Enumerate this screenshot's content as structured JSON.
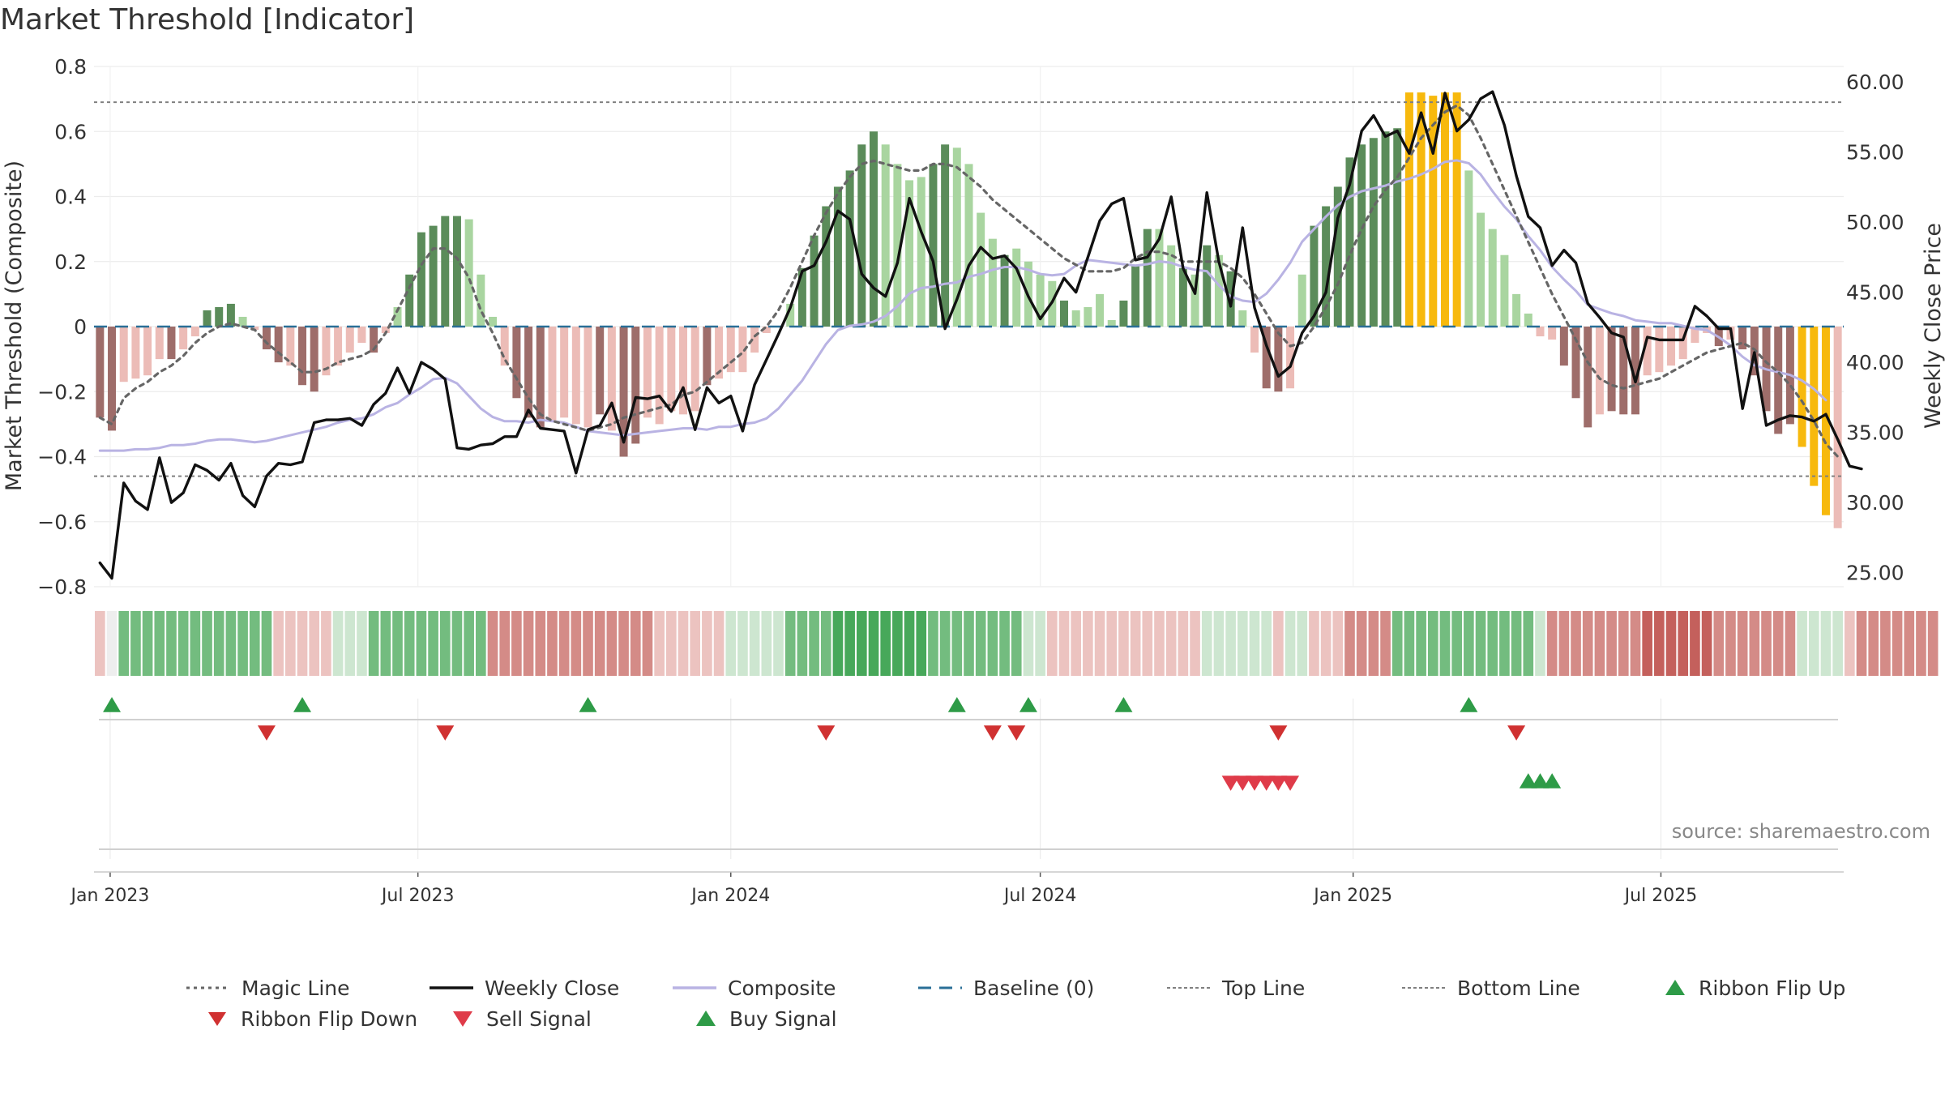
{
  "title": "Market Threshold [Indicator]",
  "source": "source: sharemaestro.com",
  "colors": {
    "magic": "#666666",
    "close": "#111111",
    "composite": "#b9b3e3",
    "baseline": "#2a6f97",
    "topbottom": "#808080",
    "up_strong": "#5b8c5a",
    "up_weak": "#a9d5a0",
    "down_strong": "#9e6d6a",
    "down_weak": "#ecbcb7",
    "extreme": "#f7b90d",
    "buy": "#2e9b47",
    "sell": "#d64545"
  },
  "chart_data": [
    {
      "type": "bar+line",
      "ylabel": "Market Threshold (Composite)",
      "y2label": "Weekly Close Price",
      "ylim": [
        -0.8,
        0.8
      ],
      "y2lim": [
        24,
        61.1
      ],
      "yticks": [
        "0.8",
        "0.6",
        "0.4",
        "0.2",
        "0",
        "−0.2",
        "−0.4",
        "−0.6",
        "−0.8"
      ],
      "yticks_values": [
        0.8,
        0.6,
        0.4,
        0.2,
        0,
        -0.2,
        -0.4,
        -0.6,
        -0.8
      ],
      "y2ticks": [
        "60.00",
        "55.00",
        "50.00",
        "45.00",
        "40.00",
        "35.00",
        "30.00",
        "25.00"
      ],
      "y2ticks_values": [
        60,
        55,
        50,
        45,
        40,
        35,
        30,
        25
      ],
      "top_line": 0.69,
      "bottom_line": -0.46,
      "baseline": 0,
      "grid": true,
      "x_start": "2022-12-26",
      "x_labels": [
        "Jan 2023",
        "Jul 2023",
        "Jan 2024",
        "Jul 2024",
        "Jan 2025",
        "Jul 2025"
      ],
      "x_label_dates": [
        "2023-01-01",
        "2023-07-01",
        "2024-01-01",
        "2024-07-01",
        "2025-01-01",
        "2025-07-01"
      ],
      "composite": [
        -0.28,
        -0.32,
        -0.17,
        -0.16,
        -0.15,
        -0.1,
        -0.1,
        -0.07,
        -0.03,
        0.05,
        0.06,
        0.07,
        0.03,
        -0.01,
        -0.07,
        -0.11,
        -0.12,
        -0.18,
        -0.2,
        -0.15,
        -0.12,
        -0.08,
        -0.05,
        -0.08,
        -0.02,
        0.06,
        0.16,
        0.29,
        0.31,
        0.34,
        0.34,
        0.33,
        0.16,
        0.03,
        -0.12,
        -0.22,
        -0.28,
        -0.31,
        -0.29,
        -0.28,
        -0.3,
        -0.31,
        -0.27,
        -0.32,
        -0.4,
        -0.36,
        -0.28,
        -0.3,
        -0.26,
        -0.27,
        -0.26,
        -0.18,
        -0.16,
        -0.14,
        -0.14,
        -0.08,
        -0.02,
        0.0,
        0.07,
        0.18,
        0.28,
        0.37,
        0.43,
        0.48,
        0.56,
        0.6,
        0.56,
        0.5,
        0.45,
        0.46,
        0.5,
        0.56,
        0.55,
        0.5,
        0.35,
        0.27,
        0.22,
        0.24,
        0.2,
        0.16,
        0.14,
        0.08,
        0.05,
        0.06,
        0.1,
        0.02,
        0.08,
        0.19,
        0.3,
        0.3,
        0.25,
        0.18,
        0.16,
        0.25,
        0.22,
        0.17,
        0.05,
        -0.08,
        -0.19,
        -0.2,
        -0.19,
        0.16,
        0.31,
        0.37,
        0.43,
        0.52,
        0.56,
        0.58,
        0.6,
        0.61,
        0.72,
        0.72,
        0.71,
        0.72,
        0.72,
        0.48,
        0.35,
        0.3,
        0.22,
        0.1,
        0.04,
        -0.03,
        -0.04,
        -0.12,
        -0.22,
        -0.31,
        -0.27,
        -0.26,
        -0.27,
        -0.27,
        -0.15,
        -0.14,
        -0.12,
        -0.1,
        -0.05,
        -0.02,
        -0.06,
        -0.04,
        -0.07,
        -0.15,
        -0.26,
        -0.33,
        -0.3,
        -0.37,
        -0.49,
        -0.58,
        -0.62
      ],
      "bar_class": [
        "ds",
        "ds",
        "dw",
        "dw",
        "dw",
        "dw",
        "ds",
        "dw",
        "dw",
        "us",
        "us",
        "us",
        "uw",
        "dw",
        "ds",
        "ds",
        "dw",
        "ds",
        "ds",
        "dw",
        "dw",
        "dw",
        "dw",
        "ds",
        "dw",
        "uw",
        "us",
        "us",
        "us",
        "us",
        "us",
        "uw",
        "uw",
        "uw",
        "dw",
        "ds",
        "ds",
        "ds",
        "dw",
        "dw",
        "dw",
        "dw",
        "ds",
        "dw",
        "ds",
        "ds",
        "dw",
        "dw",
        "dw",
        "dw",
        "dw",
        "ds",
        "dw",
        "dw",
        "dw",
        "dw",
        "dw",
        "uw",
        "uw",
        "us",
        "us",
        "us",
        "us",
        "us",
        "us",
        "us",
        "uw",
        "uw",
        "uw",
        "uw",
        "us",
        "us",
        "uw",
        "uw",
        "uw",
        "uw",
        "us",
        "uw",
        "uw",
        "uw",
        "uw",
        "us",
        "uw",
        "uw",
        "uw",
        "uw",
        "us",
        "us",
        "us",
        "uw",
        "uw",
        "us",
        "uw",
        "us",
        "uw",
        "us",
        "uw",
        "dw",
        "ds",
        "ds",
        "dw",
        "uw",
        "us",
        "us",
        "us",
        "us",
        "us",
        "us",
        "us",
        "us",
        "ex",
        "ex",
        "ex",
        "ex",
        "ex",
        "uw",
        "uw",
        "uw",
        "uw",
        "uw",
        "uw",
        "dw",
        "dw",
        "ds",
        "ds",
        "ds",
        "dw",
        "ds",
        "ds",
        "ds",
        "dw",
        "dw",
        "dw",
        "dw",
        "dw",
        "dw",
        "ds",
        "dw",
        "ds",
        "ds",
        "ds",
        "ds",
        "ds",
        "ex",
        "ex",
        "ex"
      ],
      "magic": [
        -0.28,
        -0.3,
        -0.22,
        -0.19,
        -0.17,
        -0.14,
        -0.12,
        -0.09,
        -0.05,
        -0.02,
        0.0,
        0.01,
        0.0,
        -0.01,
        -0.05,
        -0.08,
        -0.11,
        -0.14,
        -0.14,
        -0.13,
        -0.11,
        -0.1,
        -0.09,
        -0.07,
        -0.02,
        0.05,
        0.12,
        0.19,
        0.24,
        0.24,
        0.21,
        0.15,
        0.05,
        -0.02,
        -0.1,
        -0.16,
        -0.22,
        -0.27,
        -0.29,
        -0.3,
        -0.31,
        -0.32,
        -0.31,
        -0.3,
        -0.28,
        -0.27,
        -0.26,
        -0.25,
        -0.24,
        -0.21,
        -0.2,
        -0.17,
        -0.14,
        -0.11,
        -0.08,
        -0.03,
        0.0,
        0.05,
        0.12,
        0.2,
        0.28,
        0.35,
        0.41,
        0.46,
        0.5,
        0.51,
        0.5,
        0.49,
        0.48,
        0.48,
        0.5,
        0.5,
        0.49,
        0.46,
        0.43,
        0.39,
        0.36,
        0.33,
        0.3,
        0.27,
        0.24,
        0.21,
        0.19,
        0.17,
        0.17,
        0.17,
        0.18,
        0.21,
        0.23,
        0.23,
        0.22,
        0.2,
        0.2,
        0.2,
        0.2,
        0.18,
        0.15,
        0.1,
        0.04,
        -0.02,
        -0.06,
        -0.05,
        0.0,
        0.06,
        0.13,
        0.22,
        0.3,
        0.37,
        0.42,
        0.46,
        0.52,
        0.58,
        0.62,
        0.66,
        0.68,
        0.65,
        0.58,
        0.5,
        0.42,
        0.34,
        0.26,
        0.18,
        0.1,
        0.03,
        -0.04,
        -0.11,
        -0.16,
        -0.18,
        -0.19,
        -0.18,
        -0.17,
        -0.16,
        -0.14,
        -0.12,
        -0.1,
        -0.08,
        -0.07,
        -0.06,
        -0.05,
        -0.07,
        -0.11,
        -0.14,
        -0.18,
        -0.23,
        -0.29,
        -0.36,
        -0.4
      ],
      "weekly_close": [
        25.7,
        24.6,
        31.4,
        30.1,
        29.5,
        33.2,
        30.0,
        30.7,
        32.7,
        32.3,
        31.6,
        32.8,
        30.5,
        29.7,
        31.9,
        32.8,
        32.7,
        32.9,
        35.7,
        35.9,
        35.9,
        36.0,
        35.5,
        37.0,
        37.8,
        39.6,
        37.8,
        40.0,
        39.5,
        38.8,
        33.9,
        33.8,
        34.1,
        34.2,
        34.7,
        34.7,
        36.6,
        35.3,
        35.2,
        35.1,
        32.1,
        35.2,
        35.5,
        37.1,
        34.3,
        37.5,
        37.4,
        37.6,
        36.5,
        38.2,
        35.2,
        38.2,
        37.1,
        37.6,
        35.1,
        38.4,
        40.2,
        42.0,
        43.9,
        46.5,
        46.9,
        48.6,
        50.8,
        50.2,
        46.3,
        45.3,
        44.7,
        47.1,
        51.7,
        49.3,
        47.2,
        42.4,
        44.5,
        46.9,
        48.2,
        47.4,
        47.6,
        46.7,
        44.7,
        43.1,
        44.3,
        46.0,
        45.0,
        47.5,
        50.1,
        51.3,
        51.7,
        47.3,
        47.5,
        48.8,
        51.8,
        46.7,
        44.9,
        52.1,
        47.2,
        44.0,
        49.6,
        43.9,
        41.2,
        39.0,
        39.7,
        42.1,
        43.3,
        45.0,
        50.3,
        52.7,
        56.5,
        57.6,
        56.1,
        56.5,
        54.9,
        57.8,
        54.9,
        59.2,
        56.5,
        57.3,
        58.8,
        59.3,
        56.9,
        53.3,
        50.4,
        49.6,
        46.9,
        48.0,
        47.1,
        44.2,
        43.2,
        42.1,
        41.8,
        38.6,
        41.8,
        41.6,
        41.6,
        41.6,
        44.0,
        43.3,
        42.4,
        42.4,
        36.7,
        40.7,
        35.5,
        35.9,
        36.2,
        36.1,
        35.8,
        36.3,
        34.5,
        32.6,
        32.4
      ],
      "composite_line": [
        33.7,
        33.7,
        33.7,
        33.8,
        33.8,
        33.9,
        34.1,
        34.1,
        34.2,
        34.4,
        34.5,
        34.5,
        34.4,
        34.3,
        34.4,
        34.6,
        34.8,
        35.0,
        35.2,
        35.4,
        35.7,
        35.9,
        36.0,
        36.3,
        36.8,
        37.1,
        37.7,
        38.2,
        38.8,
        38.9,
        38.5,
        37.6,
        36.7,
        36.1,
        35.8,
        35.8,
        35.7,
        35.9,
        35.8,
        35.7,
        35.4,
        35.1,
        35.0,
        34.9,
        34.8,
        34.9,
        35.0,
        35.1,
        35.2,
        35.3,
        35.3,
        35.2,
        35.4,
        35.4,
        35.6,
        35.7,
        36.0,
        36.7,
        37.7,
        38.7,
        40.0,
        41.3,
        42.3,
        42.6,
        42.7,
        42.9,
        43.3,
        44.0,
        44.9,
        45.3,
        45.4,
        45.6,
        45.7,
        46.1,
        46.3,
        46.6,
        46.8,
        46.8,
        46.6,
        46.3,
        46.2,
        46.3,
        46.9,
        47.3,
        47.2,
        47.1,
        47.0,
        46.9,
        47.0,
        47.2,
        47.1,
        46.8,
        46.6,
        46.5,
        45.5,
        44.7,
        44.4,
        44.3,
        44.9,
        45.9,
        47.1,
        48.6,
        49.5,
        50.4,
        51.2,
        51.8,
        52.2,
        52.4,
        52.6,
        52.9,
        53.1,
        53.4,
        53.8,
        54.3,
        54.4,
        54.2,
        53.4,
        52.2,
        51.1,
        50.2,
        49.0,
        48.0,
        46.8,
        45.9,
        45.1,
        44.1,
        43.8,
        43.5,
        43.3,
        43.0,
        42.9,
        42.8,
        42.8,
        42.6,
        42.4,
        42.3,
        41.8,
        41.2,
        40.4,
        39.8,
        39.5,
        39.3,
        39.1,
        38.7,
        38.1,
        37.3
      ],
      "series": [
        {
          "name": "Magic Line"
        },
        {
          "name": "Weekly Close"
        },
        {
          "name": "Composite"
        },
        {
          "name": "Baseline (0)"
        },
        {
          "name": "Top Line"
        },
        {
          "name": "Bottom Line"
        }
      ]
    },
    {
      "type": "heatmap",
      "ribbon": [
        "dw",
        "ds",
        "um",
        "um",
        "um",
        "um",
        "um",
        "um",
        "um",
        "um",
        "um",
        "um",
        "um",
        "um",
        "um",
        "dw",
        "dw",
        "dw",
        "dw",
        "dw",
        "uw",
        "uw",
        "uw",
        "um",
        "um",
        "um",
        "um",
        "um",
        "um",
        "um",
        "um",
        "um",
        "um",
        "dm",
        "dm",
        "dm",
        "dm",
        "dm",
        "dm",
        "dm",
        "dm",
        "dm",
        "dm",
        "dm",
        "dm",
        "dm",
        "dm",
        "dw",
        "dw",
        "dw",
        "dw",
        "dw",
        "dw",
        "uw",
        "uw",
        "uw",
        "uw",
        "uw",
        "um",
        "um",
        "um",
        "um",
        "ud",
        "ud",
        "ud",
        "ud",
        "ud",
        "ud",
        "ud",
        "ud",
        "um",
        "um",
        "um",
        "um",
        "um",
        "um",
        "um",
        "um",
        "uw",
        "uw",
        "dw",
        "dw",
        "dw",
        "dw",
        "dw",
        "dw",
        "dw",
        "dw",
        "dw",
        "dw",
        "dw",
        "dw",
        "dw",
        "uw",
        "uw",
        "uw",
        "uw",
        "uw",
        "uw",
        "dw",
        "uw",
        "uw",
        "dw",
        "dw",
        "dw",
        "dm",
        "dm",
        "dm",
        "dm",
        "um",
        "um",
        "um",
        "um",
        "um",
        "um",
        "um",
        "um",
        "um",
        "um",
        "um",
        "um",
        "uw",
        "dm",
        "dm",
        "dm",
        "dm",
        "dm",
        "dm",
        "dm",
        "dm",
        "dd",
        "dd",
        "dd",
        "dd",
        "dd",
        "dd",
        "dm",
        "dm",
        "dm",
        "dm",
        "dm",
        "dm",
        "dm",
        "uw",
        "uw",
        "uw",
        "uw",
        "dw",
        "dm",
        "dm",
        "dm",
        "dm",
        "dm",
        "dm",
        "dm"
      ]
    },
    {
      "type": "scatter",
      "name": "signals",
      "ribbon_flip_up": [
        1,
        17,
        41,
        72,
        78,
        86,
        115
      ],
      "ribbon_flip_down": [
        14,
        29,
        61,
        75,
        77,
        99,
        119
      ],
      "sell_signal": [
        95,
        96,
        97,
        98,
        99,
        100
      ],
      "buy_signal": [
        120,
        121,
        122
      ]
    }
  ],
  "legend": [
    {
      "label": "Magic Line",
      "icon": "dotted-line"
    },
    {
      "label": "Weekly Close",
      "icon": "solid-line"
    },
    {
      "label": "Composite",
      "icon": "lavender-line"
    },
    {
      "label": "Baseline (0)",
      "icon": "dashed-line"
    },
    {
      "label": "Top Line",
      "icon": "thin-dotted-line"
    },
    {
      "label": "Bottom Line",
      "icon": "thin-dotted-line"
    },
    {
      "label": "Ribbon Flip Up",
      "icon": "triangle-up-green"
    },
    {
      "label": "Ribbon Flip Down",
      "icon": "triangle-down-red"
    },
    {
      "label": "Sell Signal",
      "icon": "triangle-down-light-red"
    },
    {
      "label": "Buy Signal",
      "icon": "triangle-up-green"
    }
  ]
}
